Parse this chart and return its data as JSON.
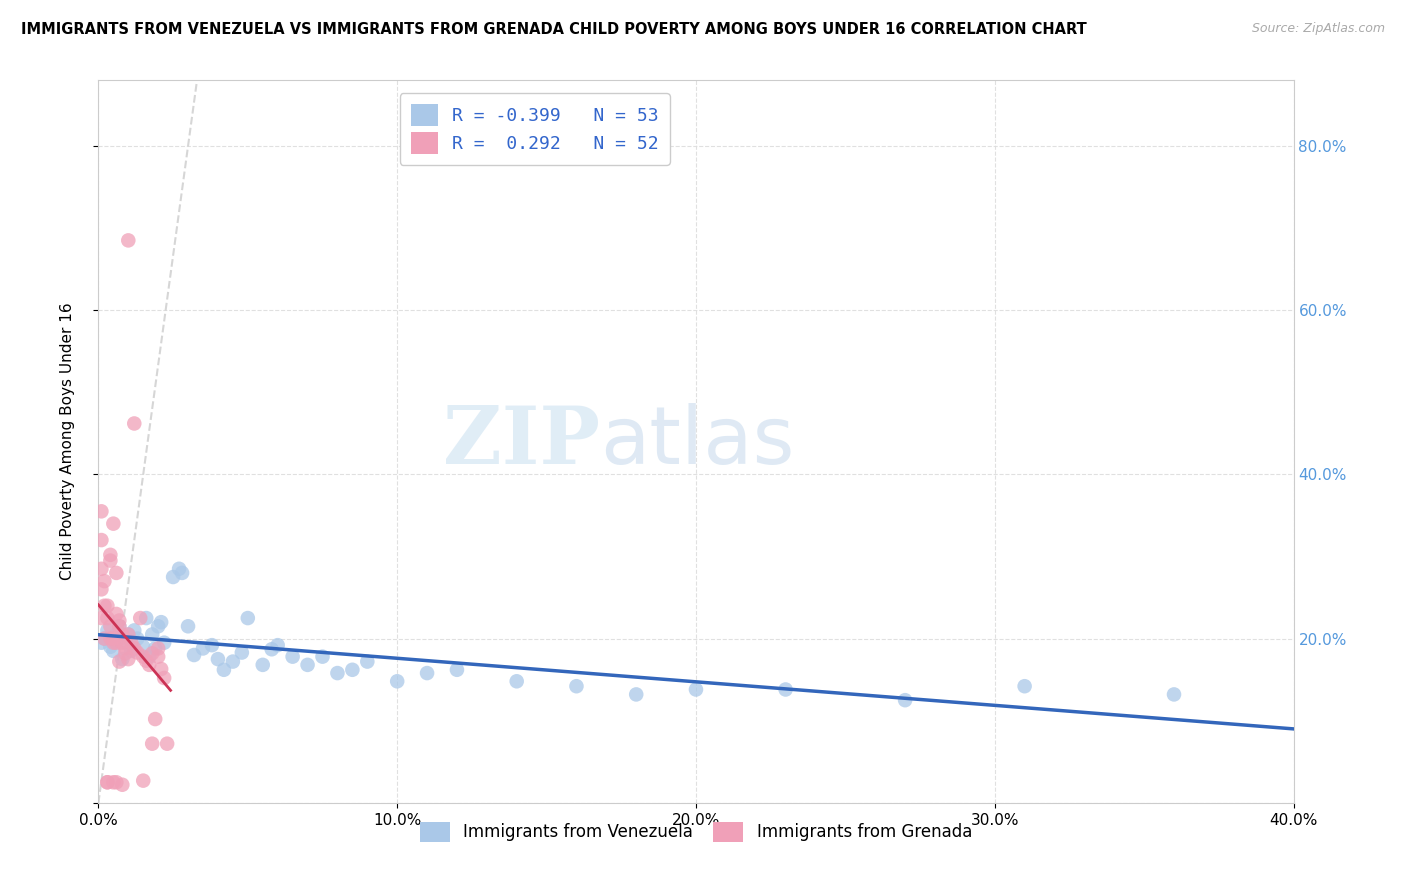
{
  "title": "IMMIGRANTS FROM VENEZUELA VS IMMIGRANTS FROM GRENADA CHILD POVERTY AMONG BOYS UNDER 16 CORRELATION CHART",
  "source": "Source: ZipAtlas.com",
  "ylabel_left": "Child Poverty Among Boys Under 16",
  "xlim": [
    0.0,
    0.4
  ],
  "ylim": [
    0.0,
    0.88
  ],
  "watermark_zip": "ZIP",
  "watermark_atlas": "atlas",
  "R_venezuela": -0.399,
  "N_venezuela": 53,
  "R_grenada": 0.292,
  "N_grenada": 52,
  "venezuela_color": "#aac8e8",
  "grenada_color": "#f0a0b8",
  "venezuela_line_color": "#3366bb",
  "grenada_line_color": "#cc3355",
  "diag_line_color": "#cccccc",
  "grid_color": "#dddddd",
  "right_axis_color": "#5599dd",
  "venezuela_scatter": {
    "x": [
      0.001,
      0.002,
      0.003,
      0.004,
      0.005,
      0.006,
      0.007,
      0.008,
      0.009,
      0.01,
      0.011,
      0.012,
      0.013,
      0.015,
      0.016,
      0.017,
      0.018,
      0.019,
      0.02,
      0.021,
      0.022,
      0.025,
      0.027,
      0.028,
      0.03,
      0.032,
      0.035,
      0.038,
      0.04,
      0.042,
      0.045,
      0.048,
      0.05,
      0.055,
      0.058,
      0.06,
      0.065,
      0.07,
      0.075,
      0.08,
      0.085,
      0.09,
      0.1,
      0.11,
      0.12,
      0.14,
      0.16,
      0.18,
      0.2,
      0.23,
      0.27,
      0.31,
      0.36
    ],
    "y": [
      0.195,
      0.2,
      0.21,
      0.19,
      0.185,
      0.205,
      0.215,
      0.175,
      0.195,
      0.205,
      0.185,
      0.21,
      0.2,
      0.19,
      0.225,
      0.178,
      0.205,
      0.188,
      0.215,
      0.22,
      0.195,
      0.275,
      0.285,
      0.28,
      0.215,
      0.18,
      0.188,
      0.192,
      0.175,
      0.162,
      0.172,
      0.183,
      0.225,
      0.168,
      0.187,
      0.192,
      0.178,
      0.168,
      0.178,
      0.158,
      0.162,
      0.172,
      0.148,
      0.158,
      0.162,
      0.148,
      0.142,
      0.132,
      0.138,
      0.138,
      0.125,
      0.142,
      0.132
    ]
  },
  "grenada_scatter": {
    "x": [
      0.001,
      0.001,
      0.001,
      0.001,
      0.001,
      0.002,
      0.002,
      0.002,
      0.003,
      0.003,
      0.003,
      0.004,
      0.004,
      0.004,
      0.005,
      0.005,
      0.005,
      0.006,
      0.006,
      0.007,
      0.007,
      0.008,
      0.008,
      0.009,
      0.009,
      0.01,
      0.01,
      0.011,
      0.012,
      0.013,
      0.014,
      0.015,
      0.016,
      0.017,
      0.018,
      0.019,
      0.02,
      0.021,
      0.022,
      0.023,
      0.004,
      0.005,
      0.006,
      0.007,
      0.008,
      0.01,
      0.012,
      0.015,
      0.018,
      0.02,
      0.003,
      0.006
    ],
    "y": [
      0.355,
      0.32,
      0.285,
      0.26,
      0.225,
      0.27,
      0.24,
      0.2,
      0.24,
      0.225,
      0.025,
      0.215,
      0.2,
      0.295,
      0.2,
      0.195,
      0.34,
      0.23,
      0.195,
      0.222,
      0.215,
      0.205,
      0.195,
      0.188,
      0.182,
      0.175,
      0.205,
      0.195,
      0.188,
      0.183,
      0.225,
      0.178,
      0.173,
      0.168,
      0.072,
      0.102,
      0.188,
      0.163,
      0.152,
      0.072,
      0.302,
      0.025,
      0.28,
      0.172,
      0.022,
      0.685,
      0.462,
      0.027,
      0.182,
      0.178,
      0.025,
      0.025
    ]
  }
}
